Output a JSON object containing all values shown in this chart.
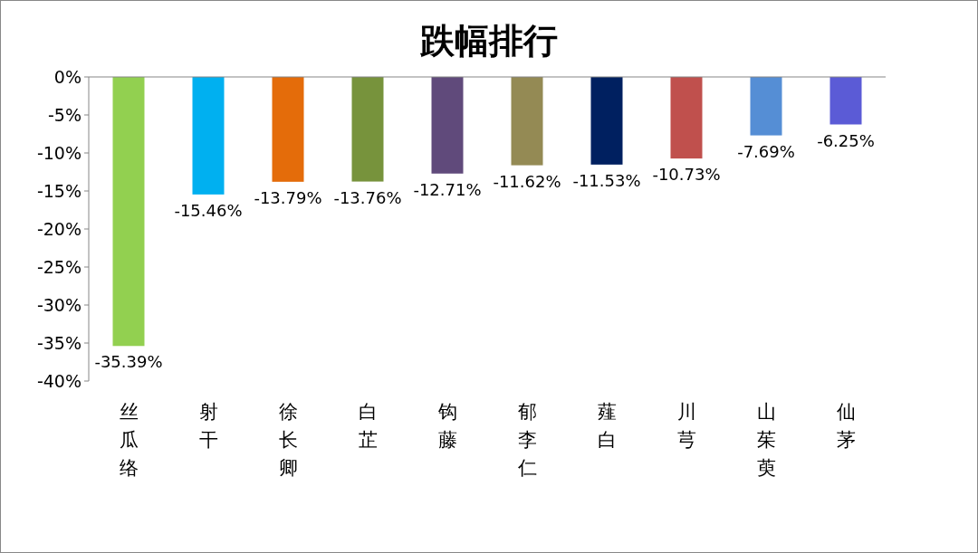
{
  "chart_data": {
    "type": "bar",
    "title": "跌幅排行",
    "categories": [
      "丝瓜络",
      "射干",
      "徐长卿",
      "白芷",
      "钩藤",
      "郁李仁",
      "薤白",
      "川芎",
      "山茱萸",
      "仙茅"
    ],
    "values": [
      -35.39,
      -15.46,
      -13.79,
      -13.76,
      -12.71,
      -11.62,
      -11.53,
      -10.73,
      -7.69,
      -6.25
    ],
    "colors": [
      "#92d050",
      "#00b0f0",
      "#e46c0a",
      "#77933c",
      "#604a7b",
      "#948a54",
      "#002060",
      "#c0504d",
      "#558ed5",
      "#5b5bd6"
    ],
    "value_labels": [
      "-35.39%",
      "-15.46%",
      "-13.79%",
      "-13.76%",
      "-12.71%",
      "-11.62%",
      "-11.53%",
      "-10.73%",
      "-7.69%",
      "-6.25%"
    ],
    "ylim": [
      -40,
      0
    ],
    "yticks": [
      {
        "value": 0,
        "label": "0%"
      },
      {
        "value": -5,
        "label": "-5%"
      },
      {
        "value": -10,
        "label": "-10%"
      },
      {
        "value": -15,
        "label": "-15%"
      },
      {
        "value": -20,
        "label": "-20%"
      },
      {
        "value": -25,
        "label": "-25%"
      },
      {
        "value": -30,
        "label": "-30%"
      },
      {
        "value": -35,
        "label": "-35%"
      },
      {
        "value": -40,
        "label": "-40%"
      }
    ],
    "grid": false
  }
}
